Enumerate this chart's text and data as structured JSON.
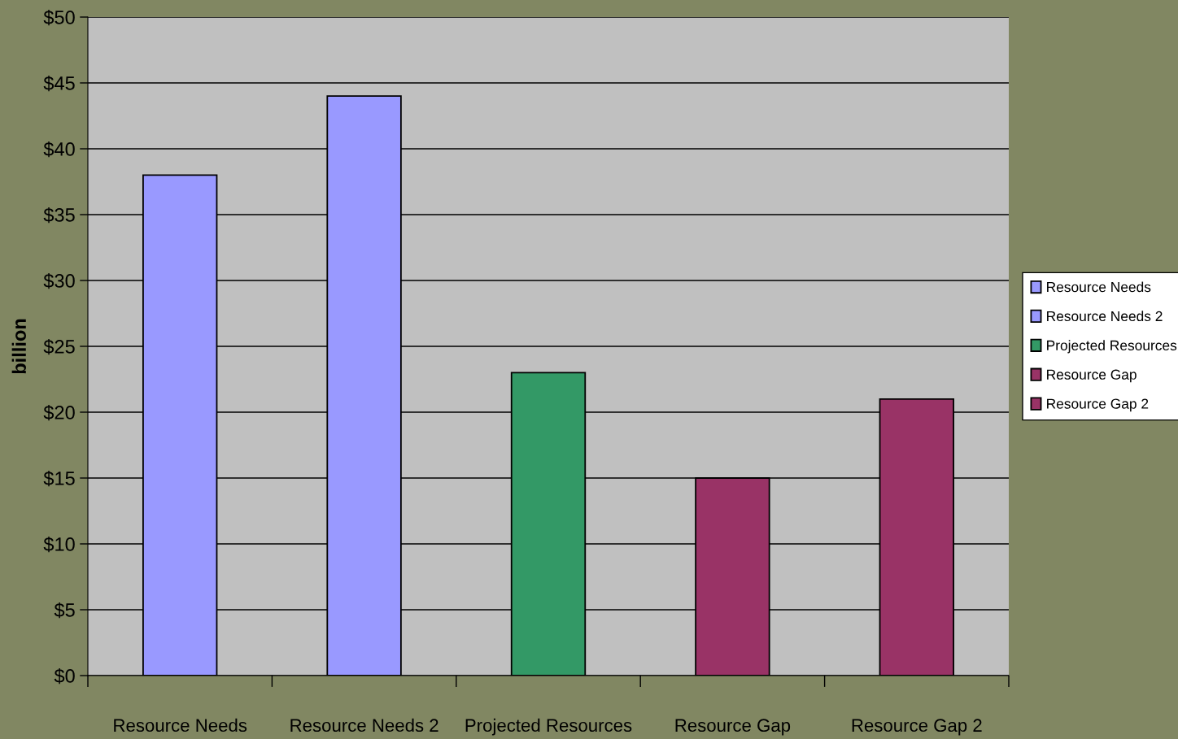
{
  "chart_data": {
    "type": "bar",
    "ylabel": "billion",
    "stacked": true,
    "categories": [
      "Resource Needs",
      "Resource Needs 2",
      "Projected Resources",
      "Resource Gap",
      "Resource Gap 2"
    ],
    "series": [
      {
        "name": "Resource Needs",
        "color": "#9999ff",
        "values": [
          38,
          null,
          null,
          null,
          null
        ]
      },
      {
        "name": "Resource Needs 2",
        "color": "#9999ff",
        "values": [
          null,
          44,
          null,
          null,
          null
        ]
      },
      {
        "name": "Projected Resources",
        "color": "#339966",
        "values": [
          null,
          null,
          23,
          null,
          null
        ]
      },
      {
        "name": "Resource Gap",
        "color": "#993366",
        "values": [
          null,
          null,
          null,
          15,
          null
        ]
      },
      {
        "name": "Resource Gap 2",
        "color": "#993366",
        "values": [
          null,
          null,
          null,
          null,
          21
        ]
      }
    ],
    "ylim": [
      0,
      50
    ],
    "yticks": [
      {
        "value": 0,
        "label": "$0"
      },
      {
        "value": 5,
        "label": "$5"
      },
      {
        "value": 10,
        "label": "$10"
      },
      {
        "value": 15,
        "label": "$15"
      },
      {
        "value": 20,
        "label": "$20"
      },
      {
        "value": 25,
        "label": "$25"
      },
      {
        "value": 30,
        "label": "$30"
      },
      {
        "value": 35,
        "label": "$35"
      },
      {
        "value": 40,
        "label": "$40"
      },
      {
        "value": 45,
        "label": "$45"
      },
      {
        "value": 50,
        "label": "$50"
      }
    ],
    "grid": "y",
    "legend": "right"
  }
}
